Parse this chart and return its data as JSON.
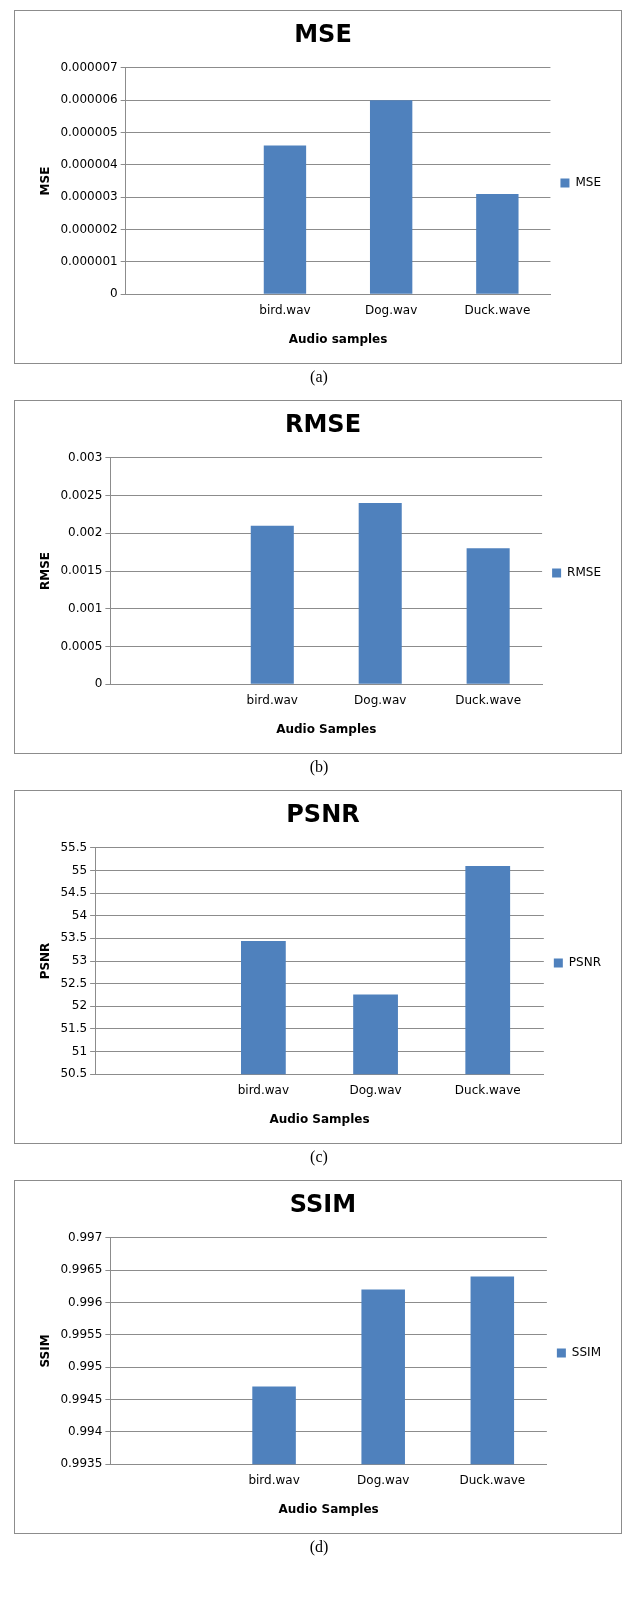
{
  "chart_data": [
    {
      "type": "bar",
      "title": "MSE",
      "xlabel": "Audio samples",
      "ylabel": "MSE",
      "categories": [
        null,
        "bird.wav",
        "Dog.wav",
        "Duck.wave"
      ],
      "series": [
        {
          "name": "MSE",
          "color": "#4f81bd",
          "values": [
            null,
            4.6e-06,
            6e-06,
            3.1e-06
          ]
        }
      ],
      "ylim": [
        0,
        7e-06
      ],
      "yticks": [
        0,
        {
          "value": 1e-06,
          "label": "0.000001"
        },
        {
          "value": 2e-06,
          "label": "0.000002"
        },
        {
          "value": 3e-06,
          "label": "0.000003"
        },
        {
          "value": 4e-06,
          "label": "0.000004"
        },
        {
          "value": 5e-06,
          "label": "0.000005"
        },
        {
          "value": 6e-06,
          "label": "0.000006"
        },
        {
          "value": 7e-06,
          "label": "0.000007"
        }
      ],
      "grid": "y",
      "legend": "right",
      "annotations": [
        "(a)"
      ]
    },
    {
      "type": "bar",
      "title": "RMSE",
      "xlabel": "Audio Samples",
      "ylabel": "RMSE",
      "categories": [
        null,
        "bird.wav",
        "Dog.wav",
        "Duck.wave"
      ],
      "series": [
        {
          "name": "RMSE",
          "color": "#4f81bd",
          "values": [
            null,
            0.0021,
            0.0024,
            0.0018
          ]
        }
      ],
      "ylim": [
        0,
        0.003
      ],
      "yticks": [
        0,
        0.0005,
        0.001,
        0.0015,
        0.002,
        0.0025,
        0.003
      ],
      "grid": "y",
      "legend": "right",
      "annotations": [
        "(b)"
      ]
    },
    {
      "type": "bar",
      "title": "PSNR",
      "xlabel": "Audio Samples",
      "ylabel": "PSNR",
      "categories": [
        null,
        "bird.wav",
        "Dog.wav",
        "Duck.wave"
      ],
      "series": [
        {
          "name": "PSNR",
          "color": "#4f81bd",
          "values": [
            null,
            53.44,
            52.26,
            55.1
          ]
        }
      ],
      "ylim": [
        50.5,
        55.5
      ],
      "yticks": [
        50.5,
        51,
        51.5,
        52,
        52.5,
        53,
        53.5,
        54,
        54.5,
        55,
        55.5
      ],
      "grid": "y",
      "legend": "right",
      "annotations": [
        "(c)"
      ]
    },
    {
      "type": "bar",
      "title": "SSIM",
      "xlabel": "Audio Samples",
      "ylabel": "SSIM",
      "categories": [
        null,
        "bird.wav",
        "Dog.wav",
        "Duck.wave"
      ],
      "series": [
        {
          "name": "SSIM",
          "color": "#4f81bd",
          "values": [
            null,
            0.9947,
            0.9962,
            0.9964
          ]
        }
      ],
      "ylim": [
        0.9935,
        0.997
      ],
      "yticks": [
        0.9935,
        0.994,
        0.9945,
        0.995,
        0.9955,
        0.996,
        0.9965,
        0.997
      ],
      "grid": "y",
      "legend": "right",
      "annotations": [
        "(d)"
      ]
    }
  ]
}
